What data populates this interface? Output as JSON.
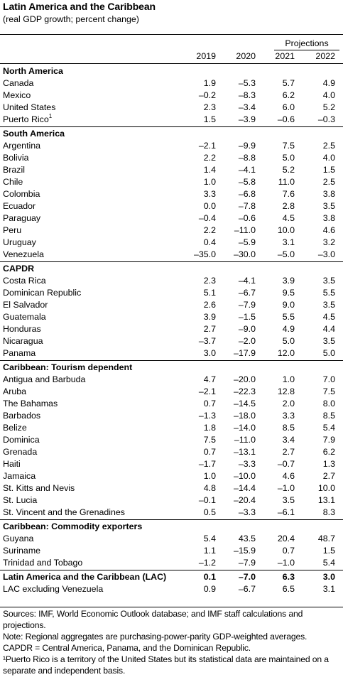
{
  "title": "Latin America and the Caribbean",
  "subtitle": "(real GDP growth; percent change)",
  "projections_label": "Projections",
  "years": [
    "2019",
    "2020",
    "2021",
    "2022"
  ],
  "groups": [
    {
      "name": "North America",
      "rows": [
        {
          "name": "Canada",
          "values": [
            "1.9",
            "–5.3",
            "5.7",
            "4.9"
          ]
        },
        {
          "name": "Mexico",
          "values": [
            "–0.2",
            "–8.3",
            "6.2",
            "4.0"
          ]
        },
        {
          "name": "United States",
          "values": [
            "2.3",
            "–3.4",
            "6.0",
            "5.2"
          ]
        },
        {
          "name": "Puerto Rico",
          "sup": "1",
          "values": [
            "1.5",
            "–3.9",
            "–0.6",
            "–0.3"
          ]
        }
      ]
    },
    {
      "name": "South America",
      "rows": [
        {
          "name": "Argentina",
          "values": [
            "–2.1",
            "–9.9",
            "7.5",
            "2.5"
          ]
        },
        {
          "name": "Bolivia",
          "values": [
            "2.2",
            "–8.8",
            "5.0",
            "4.0"
          ]
        },
        {
          "name": "Brazil",
          "values": [
            "1.4",
            "–4.1",
            "5.2",
            "1.5"
          ]
        },
        {
          "name": "Chile",
          "values": [
            "1.0",
            "–5.8",
            "11.0",
            "2.5"
          ]
        },
        {
          "name": "Colombia",
          "values": [
            "3.3",
            "–6.8",
            "7.6",
            "3.8"
          ]
        },
        {
          "name": "Ecuador",
          "values": [
            "0.0",
            "–7.8",
            "2.8",
            "3.5"
          ]
        },
        {
          "name": "Paraguay",
          "values": [
            "–0.4",
            "–0.6",
            "4.5",
            "3.8"
          ]
        },
        {
          "name": "Peru",
          "values": [
            "2.2",
            "–11.0",
            "10.0",
            "4.6"
          ]
        },
        {
          "name": "Uruguay",
          "values": [
            "0.4",
            "–5.9",
            "3.1",
            "3.2"
          ]
        },
        {
          "name": "Venezuela",
          "values": [
            "–35.0",
            "–30.0",
            "–5.0",
            "–3.0"
          ]
        }
      ]
    },
    {
      "name": "CAPDR",
      "rows": [
        {
          "name": "Costa Rica",
          "values": [
            "2.3",
            "–4.1",
            "3.9",
            "3.5"
          ]
        },
        {
          "name": "Dominican Republic",
          "values": [
            "5.1",
            "–6.7",
            "9.5",
            "5.5"
          ]
        },
        {
          "name": "El Salvador",
          "values": [
            "2.6",
            "–7.9",
            "9.0",
            "3.5"
          ]
        },
        {
          "name": "Guatemala",
          "values": [
            "3.9",
            "–1.5",
            "5.5",
            "4.5"
          ]
        },
        {
          "name": "Honduras",
          "values": [
            "2.7",
            "–9.0",
            "4.9",
            "4.4"
          ]
        },
        {
          "name": "Nicaragua",
          "values": [
            "–3.7",
            "–2.0",
            "5.0",
            "3.5"
          ]
        },
        {
          "name": "Panama",
          "values": [
            "3.0",
            "–17.9",
            "12.0",
            "5.0"
          ]
        }
      ]
    },
    {
      "name": "Caribbean: Tourism dependent",
      "rows": [
        {
          "name": "Antigua and Barbuda",
          "values": [
            "4.7",
            "–20.0",
            "1.0",
            "7.0"
          ]
        },
        {
          "name": "Aruba",
          "values": [
            "–2.1",
            "–22.3",
            "12.8",
            "7.5"
          ]
        },
        {
          "name": "The Bahamas",
          "values": [
            "0.7",
            "–14.5",
            "2.0",
            "8.0"
          ]
        },
        {
          "name": "Barbados",
          "values": [
            "–1.3",
            "–18.0",
            "3.3",
            "8.5"
          ]
        },
        {
          "name": "Belize",
          "values": [
            "1.8",
            "–14.0",
            "8.5",
            "5.4"
          ]
        },
        {
          "name": "Dominica",
          "values": [
            "7.5",
            "–11.0",
            "3.4",
            "7.9"
          ]
        },
        {
          "name": "Grenada",
          "values": [
            "0.7",
            "–13.1",
            "2.7",
            "6.2"
          ]
        },
        {
          "name": "Haiti",
          "values": [
            "–1.7",
            "–3.3",
            "–0.7",
            "1.3"
          ]
        },
        {
          "name": "Jamaica",
          "values": [
            "1.0",
            "–10.0",
            "4.6",
            "2.7"
          ]
        },
        {
          "name": "St. Kitts and Nevis",
          "values": [
            "4.8",
            "–14.4",
            "–1.0",
            "10.0"
          ]
        },
        {
          "name": "St. Lucia",
          "values": [
            "–0.1",
            "–20.4",
            "3.5",
            "13.1"
          ]
        },
        {
          "name": "St. Vincent and the Grenadines",
          "values": [
            "0.5",
            "–3.3",
            "–6.1",
            "8.3"
          ]
        }
      ]
    },
    {
      "name": "Caribbean: Commodity exporters",
      "rows": [
        {
          "name": "Guyana",
          "values": [
            "5.4",
            "43.5",
            "20.4",
            "48.7"
          ]
        },
        {
          "name": "Suriname",
          "values": [
            "1.1",
            "–15.9",
            "0.7",
            "1.5"
          ]
        },
        {
          "name": "Trinidad and Tobago",
          "values": [
            "–1.2",
            "–7.9",
            "–1.0",
            "5.4"
          ]
        }
      ]
    }
  ],
  "totals": [
    {
      "name": "Latin America and the Caribbean (LAC)",
      "bold": true,
      "values": [
        "0.1",
        "–7.0",
        "6.3",
        "3.0"
      ]
    },
    {
      "name": "LAC excluding Venezuela",
      "bold": false,
      "values": [
        "0.9",
        "–6.7",
        "6.5",
        "3.1"
      ]
    }
  ],
  "notes": [
    "Sources: IMF, World Economic Outlook database; and IMF staff calculations and projections.",
    "Note: Regional aggregates are purchasing-power-parity GDP-weighted averages.",
    "CAPDR = Central America, Panama, and the Dominican Republic.",
    "¹Puerto Rico is a territory of the United States but its statistical data are maintained on a separate and independent basis."
  ]
}
